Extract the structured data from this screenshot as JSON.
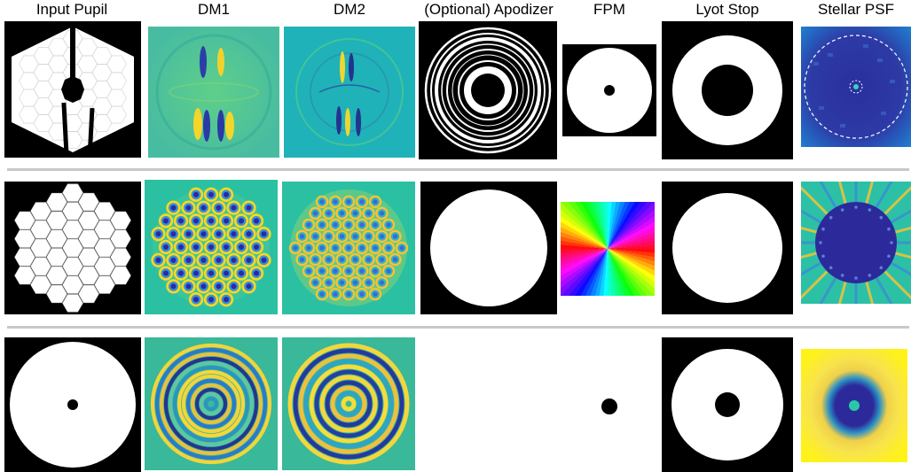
{
  "headers": {
    "input_pupil": "Input Pupil",
    "dm1": "DM1",
    "dm2": "DM2",
    "apodizer": "(Optional) Apodizer",
    "fpm": "FPM",
    "lyot_stop": "Lyot Stop",
    "stellar_psf": "Stellar PSF"
  },
  "rows": [
    {
      "name": "row-1",
      "pupil": "segmented hexagonal pupil with secondary obscuration and spiders",
      "apodizer": "ring apodizer",
      "fpm": "occulting spot",
      "lyot": "annular stop",
      "psf": "dark hole"
    },
    {
      "name": "row-2",
      "pupil": "hexagonal segmented pupil",
      "apodizer": "clear circular",
      "fpm": "vortex phase mask",
      "lyot": "clear circular",
      "psf": "dark hole"
    },
    {
      "name": "row-3",
      "pupil": "circular pupil with central obscuration",
      "apodizer": "none",
      "fpm": "occulting spot",
      "lyot": "annular stop",
      "psf": "dark hole"
    }
  ],
  "colors": {
    "background": "#ffffff",
    "mask_black": "#000000",
    "mask_white": "#ffffff",
    "separator": "#c8c8c8",
    "dm_base_green": "#2cc0a2",
    "dm_dark_blue": "#2a2aa8",
    "dm_yellow": "#f5d824",
    "psf_dark": "#2c2a9a",
    "psf_bright_yellow": "#ffef1a"
  }
}
